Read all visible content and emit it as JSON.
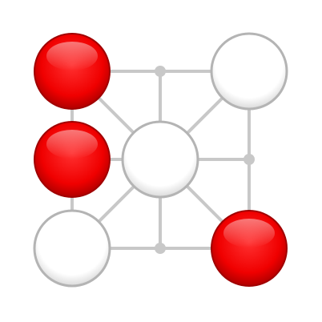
{
  "game": {
    "type": "nine-point board game",
    "colors": {
      "red_piece": "#ff0000",
      "white_piece": "#ffffff",
      "line": "#c8c8c8",
      "background": "#ffffff"
    },
    "pieces": [
      {
        "point": "top-left",
        "color": "red"
      },
      {
        "point": "top-right",
        "color": "white"
      },
      {
        "point": "middle-left",
        "color": "red"
      },
      {
        "point": "center",
        "color": "white"
      },
      {
        "point": "bottom-left",
        "color": "white"
      },
      {
        "point": "bottom-right",
        "color": "red"
      }
    ],
    "empty_points": [
      "top-center",
      "middle-right",
      "bottom-center"
    ]
  }
}
